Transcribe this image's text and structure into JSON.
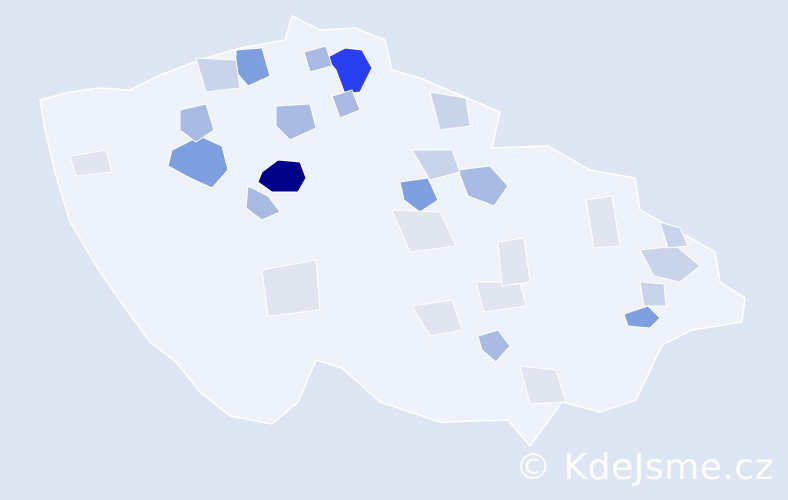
{
  "map": {
    "background_color": "#dde6f2",
    "base_region_color": "#eef2fa",
    "border_color": "#ffffff",
    "color_scale": [
      "#eef2fa",
      "#e1e5ef",
      "#c9d4ea",
      "#a9bbe3",
      "#7e9fe0",
      "#2a3ff0",
      "#000088"
    ],
    "region_levels": [
      6,
      5,
      4,
      4,
      4,
      4,
      3,
      3,
      3,
      3,
      3,
      3,
      3,
      2,
      2,
      2,
      2,
      2,
      2,
      1,
      1,
      1,
      1,
      1,
      1,
      1,
      1
    ]
  },
  "watermark": {
    "text": "© KdeJsme.cz"
  }
}
